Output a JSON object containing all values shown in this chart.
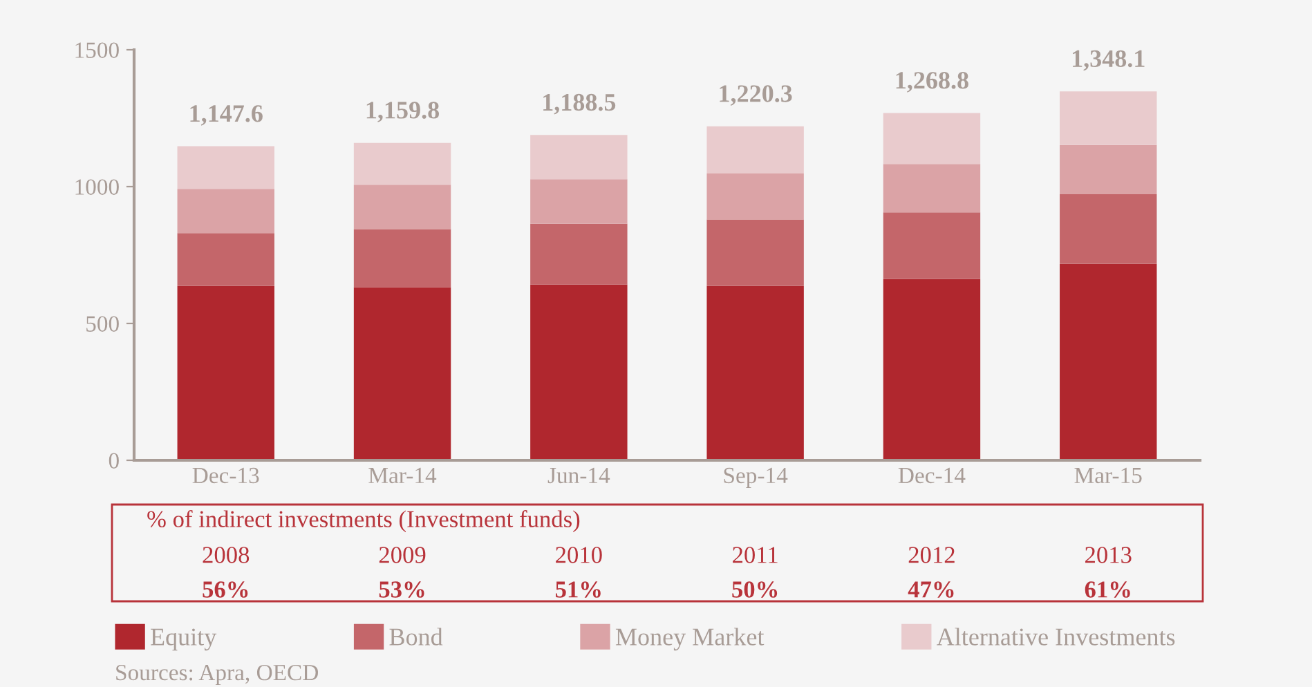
{
  "chart_data": {
    "type": "bar",
    "stacked": true,
    "categories": [
      "Dec-13",
      "Mar-14",
      "Jun-14",
      "Sep-14",
      "Dec-14",
      "Mar-15"
    ],
    "series": [
      {
        "name": "Equity",
        "color": "#b0272e",
        "values": [
          637,
          632,
          642,
          637,
          662,
          718
        ]
      },
      {
        "name": "Bond",
        "color": "#c4666a",
        "values": [
          193,
          213,
          222,
          243,
          244,
          254
        ]
      },
      {
        "name": "Money Market",
        "color": "#dba3a6",
        "values": [
          162,
          162,
          163,
          168,
          177,
          180
        ]
      },
      {
        "name": "Alternative Investments",
        "color": "#e9cbcd",
        "values": [
          155.6,
          152.8,
          161.5,
          172.3,
          185.8,
          196.1
        ]
      }
    ],
    "totals": [
      "1,147.6",
      "1,159.8",
      "1,188.5",
      "1,220.3",
      "1,268.8",
      "1,348.1"
    ],
    "ylim": [
      0,
      1500
    ],
    "yticks": [
      0,
      500,
      1000,
      1500
    ],
    "grid": false,
    "legend": "bottom",
    "annotations": [
      "% of indirect investments (Investment funds)",
      "2008",
      "2009",
      "2010",
      "2011",
      "2012",
      "2013",
      "56%",
      "53%",
      "51%",
      "50%",
      "47%",
      "61%",
      "Sources: Apra, OECD"
    ]
  }
}
